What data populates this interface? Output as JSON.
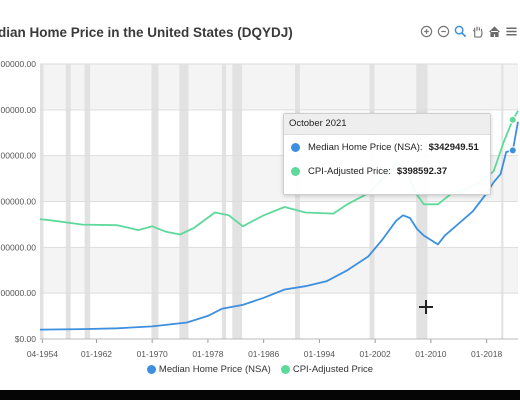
{
  "chart_data": {
    "type": "line",
    "title": "dian Home Price in the United States (DQYDJ)",
    "x_ticks": [
      "04-1954",
      "01-1962",
      "01-1970",
      "01-1978",
      "01-1986",
      "01-1994",
      "01-2002",
      "01-2010",
      "01-2018"
    ],
    "y_ticks": [
      "$0.00",
      "00000.00",
      "00000.00",
      "00000.00",
      "00000.00",
      "00000.00",
      "00000.00"
    ],
    "ylim": [
      0,
      500000
    ],
    "xlim": [
      1953.9,
      2022.5
    ],
    "grid": true,
    "legend_position": "bottom",
    "recession_bands": [
      [
        1953.5,
        1954.4
      ],
      [
        1957.6,
        1958.3
      ],
      [
        1960.3,
        1961.1
      ],
      [
        1969.9,
        1970.9
      ],
      [
        1973.9,
        1975.2
      ],
      [
        1980.0,
        1980.6
      ],
      [
        1981.5,
        1982.9
      ],
      [
        1990.5,
        1991.2
      ],
      [
        2001.2,
        2001.9
      ],
      [
        2007.9,
        2009.5
      ],
      [
        2020.1,
        2020.4
      ]
    ],
    "series": [
      {
        "name": "Median Home Price (NSA)",
        "color": "#3d8fe0",
        "points": [
          [
            1953.9,
            17000
          ],
          [
            1960,
            18000
          ],
          [
            1965,
            19500
          ],
          [
            1970,
            23000
          ],
          [
            1975,
            30000
          ],
          [
            1978,
            42000
          ],
          [
            1980,
            55000
          ],
          [
            1983,
            62000
          ],
          [
            1986,
            75000
          ],
          [
            1989,
            90000
          ],
          [
            1992,
            96000
          ],
          [
            1995,
            105000
          ],
          [
            1998,
            125000
          ],
          [
            2001,
            150000
          ],
          [
            2003,
            180000
          ],
          [
            2005,
            215000
          ],
          [
            2006,
            225000
          ],
          [
            2007,
            220000
          ],
          [
            2008,
            200000
          ],
          [
            2009,
            188000
          ],
          [
            2010,
            180000
          ],
          [
            2011,
            172000
          ],
          [
            2012,
            188000
          ],
          [
            2014,
            210000
          ],
          [
            2016,
            232000
          ],
          [
            2018,
            265000
          ],
          [
            2019,
            285000
          ],
          [
            2020,
            300000
          ],
          [
            2020.8,
            340000
          ],
          [
            2021.75,
            342949.51
          ],
          [
            2022.5,
            395000
          ]
        ]
      },
      {
        "name": "CPI-Adjusted Price",
        "color": "#5ed99b",
        "points": [
          [
            1953.9,
            218000
          ],
          [
            1956,
            215000
          ],
          [
            1960,
            208000
          ],
          [
            1965,
            207000
          ],
          [
            1968,
            198000
          ],
          [
            1970,
            205000
          ],
          [
            1972,
            195000
          ],
          [
            1974,
            190000
          ],
          [
            1976,
            202000
          ],
          [
            1979,
            230000
          ],
          [
            1981,
            225000
          ],
          [
            1983,
            205000
          ],
          [
            1986,
            225000
          ],
          [
            1989,
            240000
          ],
          [
            1992,
            230000
          ],
          [
            1996,
            228000
          ],
          [
            1998,
            245000
          ],
          [
            2001,
            265000
          ],
          [
            2003,
            290000
          ],
          [
            2005,
            320000
          ],
          [
            2006,
            315000
          ],
          [
            2007,
            290000
          ],
          [
            2008,
            262000
          ],
          [
            2009,
            245000
          ],
          [
            2011,
            245000
          ],
          [
            2013,
            265000
          ],
          [
            2015,
            272000
          ],
          [
            2017,
            285000
          ],
          [
            2019,
            305000
          ],
          [
            2020.5,
            360000
          ],
          [
            2021.75,
            398592.37
          ],
          [
            2022.5,
            415000
          ]
        ]
      }
    ],
    "tooltip": {
      "date": "October 2021",
      "items": [
        {
          "label": "Median Home Price (NSA):",
          "value": "$342949.51",
          "color": "#3d8fe0"
        },
        {
          "label": "CPI-Adjusted Price:",
          "value": "$398592.37",
          "color": "#5ed99b"
        }
      ]
    }
  }
}
